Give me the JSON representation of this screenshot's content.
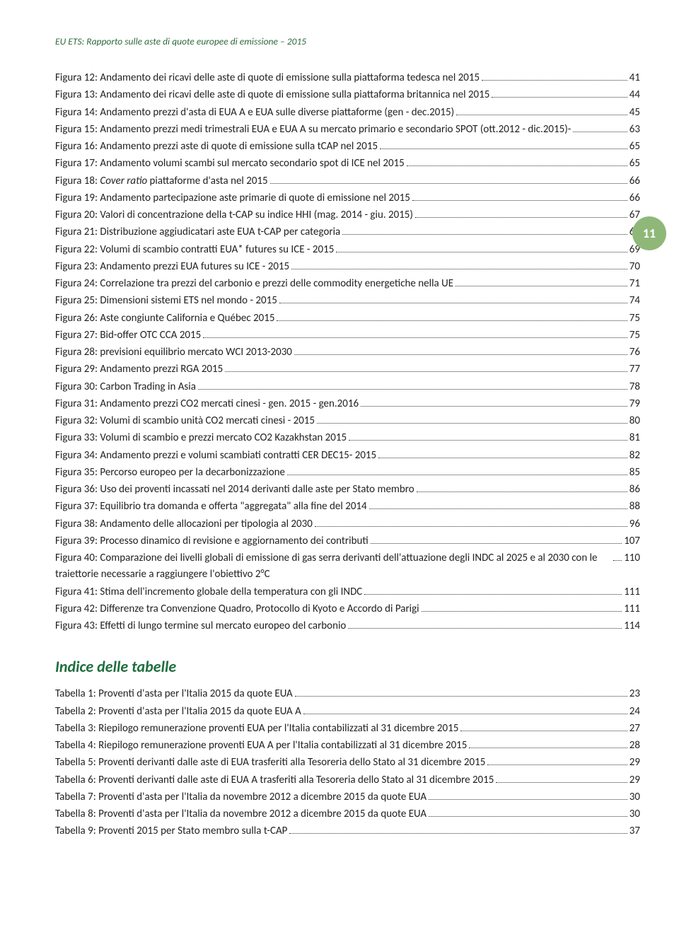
{
  "header": "EU ETS: Rapporto sulle aste di quote europee di emissione – 2015",
  "badge": "11",
  "section2": "Indice delle tabelle",
  "figs": [
    {
      "t": "Figura 12: Andamento dei ricavi delle aste di quote di emissione sulla piattaforma tedesca nel 2015",
      "p": "41"
    },
    {
      "t": "Figura 13: Andamento dei ricavi delle aste di quote di emissione sulla piattaforma britannica nel 2015",
      "p": "44"
    },
    {
      "t": "Figura 14: Andamento prezzi d'asta di EUA A e EUA sulle diverse piattaforme (gen - dec.2015)",
      "p": "45"
    },
    {
      "t": "Figura 15: Andamento prezzi medi trimestrali EUA e EUA A su mercato primario e secondario SPOT (ott.2012 - dic.2015)-",
      "p": "63"
    },
    {
      "t": "Figura 16: Andamento prezzi aste di quote di emissione sulla tCAP nel 2015",
      "p": "65"
    },
    {
      "t": "Figura 17: Andamento volumi scambi sul mercato secondario spot di ICE nel 2015",
      "p": "65"
    },
    {
      "t": "Figura 18: Cover ratio piattaforme d'asta nel 2015",
      "p": "66",
      "i": true
    },
    {
      "t": "Figura 19: Andamento partecipazione aste primarie di quote di emissione nel 2015",
      "p": "66"
    },
    {
      "t": "Figura 20: Valori di concentrazione della t-CAP su indice HHI (mag. 2014 - giu. 2015)",
      "p": "67"
    },
    {
      "t": "Figura 21: Distribuzione aggiudicatari aste EUA t-CAP per categoria",
      "p": "68"
    },
    {
      "t": "Figura 22: Volumi di scambio contratti EUA* futures su ICE - 2015",
      "p": "69"
    },
    {
      "t": "Figura 23: Andamento prezzi EUA futures su ICE - 2015",
      "p": "70"
    },
    {
      "t": "Figura 24: Correlazione tra prezzi del carbonio e prezzi delle commodity energetiche nella UE",
      "p": "71"
    },
    {
      "t": "Figura 25: Dimensioni sistemi ETS nel mondo - 2015",
      "p": "74"
    },
    {
      "t": "Figura 26: Aste congiunte California e Québec 2015",
      "p": "75"
    },
    {
      "t": "Figura 27: Bid-offer OTC CCA 2015",
      "p": "75"
    },
    {
      "t": "Figura 28: previsioni equilibrio mercato WCI 2013-2030",
      "p": "76"
    },
    {
      "t": "Figura 29: Andamento prezzi RGA 2015",
      "p": "77"
    },
    {
      "t": "Figura 30: Carbon Trading in Asia",
      "p": "78"
    },
    {
      "t": "Figura 31: Andamento prezzi CO2 mercati cinesi - gen. 2015 - gen.2016",
      "p": "79"
    },
    {
      "t": "Figura 32: Volumi di scambio unità CO2 mercati cinesi - 2015",
      "p": "80"
    },
    {
      "t": "Figura 33: Volumi di scambio e prezzi mercato CO2 Kazakhstan 2015",
      "p": "81"
    },
    {
      "t": "Figura 34: Andamento prezzi e volumi scambiati contratti CER DEC15- 2015",
      "p": "82"
    },
    {
      "t": "Figura 35: Percorso europeo per la decarbonizzazione",
      "p": "85"
    },
    {
      "t": "Figura 36: Uso dei proventi incassati nel 2014 derivanti dalle aste per Stato membro",
      "p": "86"
    },
    {
      "t": "Figura 37: Equilibrio tra domanda e offerta \"aggregata\" alla fine del 2014",
      "p": "88"
    },
    {
      "t": "Figura 38: Andamento delle allocazioni per tipologia al 2030",
      "p": "96"
    },
    {
      "t": "Figura 39: Processo dinamico di revisione e aggiornamento dei contributi",
      "p": "107"
    },
    {
      "t": "Figura 40: Comparazione dei livelli globali di emissione di gas serra derivanti dell'attuazione degli INDC al 2025 e al 2030 con le traiettorie necessarie a raggiungere l'obiettivo 2°C",
      "p": "110"
    },
    {
      "t": "Figura 41: Stima dell'incremento globale della temperatura con gli INDC",
      "p": "111"
    },
    {
      "t": "Figura 42: Differenze tra Convenzione Quadro, Protocollo di Kyoto e Accordo di Parigi",
      "p": "111"
    },
    {
      "t": "Figura 43: Effetti di lungo termine sul mercato europeo del carbonio",
      "p": "114"
    }
  ],
  "tabs": [
    {
      "t": "Tabella 1: Proventi d'asta per l'Italia 2015 da quote EUA",
      "p": "23"
    },
    {
      "t": "Tabella 2: Proventi d'asta per l'Italia 2015 da quote EUA A",
      "p": "24"
    },
    {
      "t": "Tabella 3: Riepilogo remunerazione proventi EUA per l'Italia contabilizzati al 31 dicembre 2015",
      "p": "27"
    },
    {
      "t": "Tabella 4: Riepilogo remunerazione proventi EUA A per l'Italia contabilizzati al 31 dicembre 2015",
      "p": "28"
    },
    {
      "t": "Tabella 5: Proventi derivanti dalle aste di EUA trasferiti alla Tesoreria dello Stato al 31 dicembre 2015",
      "p": "29"
    },
    {
      "t": "Tabella 6: Proventi derivanti dalle aste di EUA A trasferiti alla Tesoreria dello Stato al 31 dicembre 2015",
      "p": "29"
    },
    {
      "t": "Tabella 7: Proventi d'asta per l'Italia da novembre 2012 a dicembre 2015 da quote EUA",
      "p": "30"
    },
    {
      "t": "Tabella 8: Proventi d'asta per l'Italia da novembre 2012 a dicembre 2015 da quote EUA",
      "p": "30"
    },
    {
      "t": "Tabella 9: Proventi 2015 per Stato membro sulla t-CAP",
      "p": "37"
    }
  ]
}
